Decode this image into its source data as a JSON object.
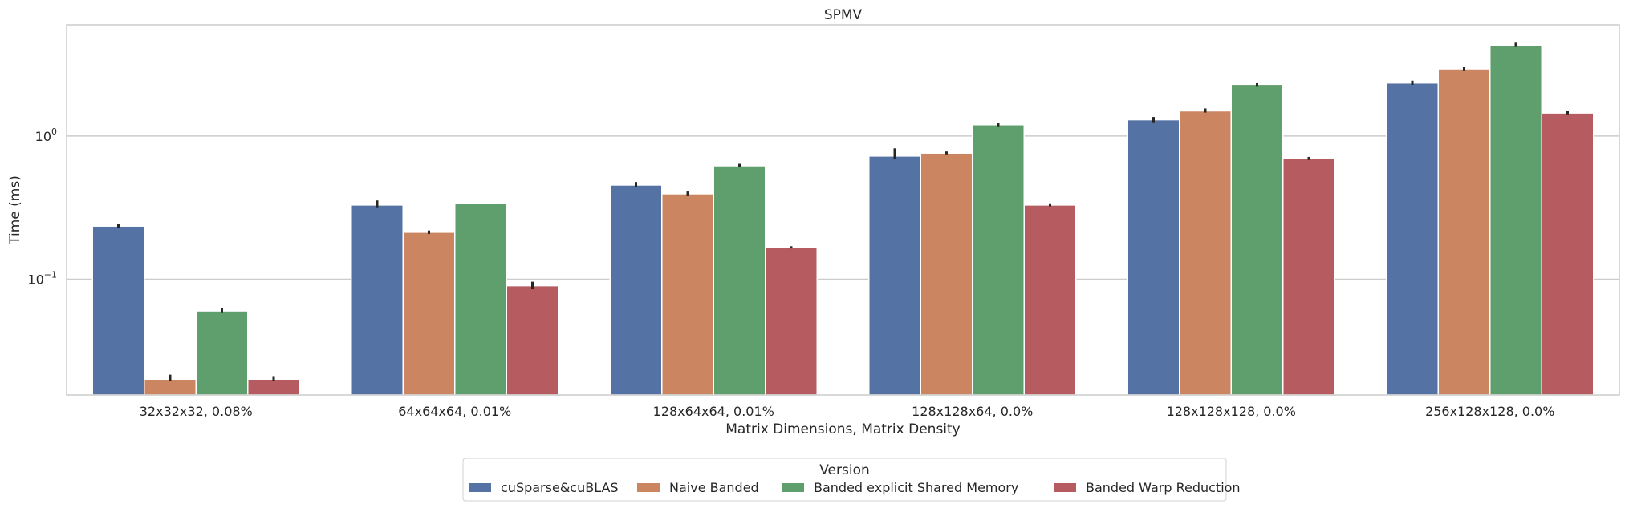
{
  "chart_data": {
    "type": "bar",
    "title": "SPMV",
    "xlabel": "Matrix Dimensions, Matrix Density",
    "ylabel": "Time (ms)",
    "yscale": "log",
    "ylim": [
      0.0155,
      6.0
    ],
    "yticks": [
      {
        "value": 0.1,
        "base": "10",
        "exp": "−1"
      },
      {
        "value": 1,
        "base": "10",
        "exp": "0"
      }
    ],
    "grid": "horizontal",
    "categories": [
      "32x32x32, 0.08%",
      "64x64x64, 0.01%",
      "128x64x64, 0.01%",
      "128x128x64, 0.0%",
      "128x128x128, 0.0%",
      "256x128x128, 0.0%"
    ],
    "series": [
      {
        "name": "cuSparse&cuBLAS",
        "color": "#5572a4",
        "values": [
          0.235,
          0.33,
          0.455,
          0.725,
          1.3,
          2.35
        ],
        "err": [
          [
            0.228,
            0.243
          ],
          [
            0.318,
            0.355
          ],
          [
            0.44,
            0.478
          ],
          [
            0.695,
            0.82
          ],
          [
            1.25,
            1.36
          ],
          [
            2.28,
            2.44
          ]
        ]
      },
      {
        "name": "Naive Banded",
        "color": "#cb8661",
        "values": [
          0.02,
          0.213,
          0.395,
          0.76,
          1.5,
          2.95
        ],
        "err": [
          [
            0.0195,
            0.0215
          ],
          [
            0.207,
            0.219
          ],
          [
            0.385,
            0.41
          ],
          [
            0.745,
            0.78
          ],
          [
            1.46,
            1.56
          ],
          [
            2.88,
            3.05
          ]
        ]
      },
      {
        "name": "Banded explicit Shared Memory",
        "color": "#5f9e6d",
        "values": [
          0.06,
          0.34,
          0.62,
          1.2,
          2.3,
          4.3
        ],
        "err": [
          [
            0.058,
            0.0625
          ],
          [
            0.34,
            0.34
          ],
          [
            0.605,
            0.64
          ],
          [
            1.17,
            1.23
          ],
          [
            2.24,
            2.36
          ],
          [
            4.2,
            4.5
          ]
        ]
      },
      {
        "name": "Banded Warp Reduction",
        "color": "#b65c61",
        "values": [
          0.02,
          0.09,
          0.167,
          0.33,
          0.7,
          1.45
        ],
        "err": [
          [
            0.0195,
            0.021
          ],
          [
            0.085,
            0.096
          ],
          [
            0.164,
            0.17
          ],
          [
            0.323,
            0.339
          ],
          [
            0.68,
            0.715
          ],
          [
            1.42,
            1.5
          ]
        ]
      }
    ],
    "legend": {
      "title": "Version",
      "position": "bottom-center",
      "columns": 4
    }
  }
}
